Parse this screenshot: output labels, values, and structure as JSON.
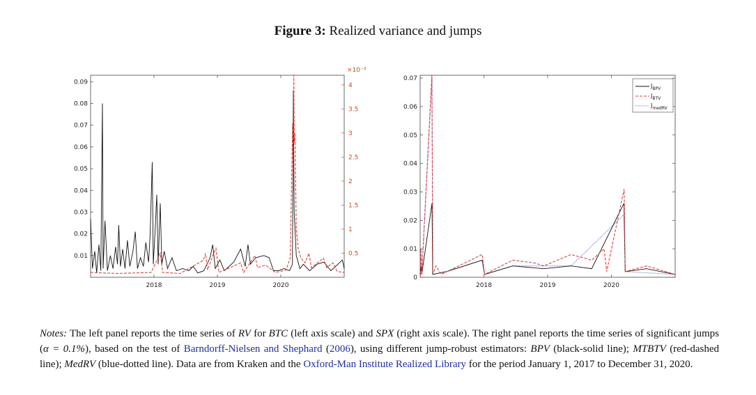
{
  "figure": {
    "label": "Figure 3:",
    "title": "Realized variance and jumps"
  },
  "chart_data": [
    {
      "type": "line",
      "panel": "left",
      "x_ticks": [
        "2018",
        "2019",
        "2020"
      ],
      "xlim": [
        "2017-01-01",
        "2020-12-31"
      ],
      "y_left_ticks": [
        "0.01",
        "0.02",
        "0.03",
        "0.04",
        "0.05",
        "0.06",
        "0.07",
        "0.08",
        "0.09"
      ],
      "ylim_left": [
        0,
        0.093
      ],
      "y_right_ticks": [
        "0.5",
        "1",
        "1.5",
        "2",
        "2.5",
        "3",
        "3.5",
        "4"
      ],
      "ylim_right": [
        0,
        4.2
      ],
      "y_right_exponent": "×10⁻³",
      "series": [
        {
          "color": "#111111",
          "style": "solid",
          "axis": "left",
          "points": [
            [
              "2017-01-01",
              0.027
            ],
            [
              "2017-01-12",
              0.004
            ],
            [
              "2017-01-25",
              0.012
            ],
            [
              "2017-02-05",
              0.002
            ],
            [
              "2017-02-18",
              0.015
            ],
            [
              "2017-03-01",
              0.003
            ],
            [
              "2017-03-10",
              0.08
            ],
            [
              "2017-03-14",
              0.004
            ],
            [
              "2017-03-25",
              0.026
            ],
            [
              "2017-04-08",
              0.003
            ],
            [
              "2017-04-25",
              0.01
            ],
            [
              "2017-05-10",
              0.004
            ],
            [
              "2017-05-25",
              0.014
            ],
            [
              "2017-06-05",
              0.006
            ],
            [
              "2017-06-12",
              0.024
            ],
            [
              "2017-06-22",
              0.005
            ],
            [
              "2017-07-05",
              0.013
            ],
            [
              "2017-07-18",
              0.004
            ],
            [
              "2017-08-01",
              0.017
            ],
            [
              "2017-08-15",
              0.005
            ],
            [
              "2017-09-02",
              0.012
            ],
            [
              "2017-09-15",
              0.021
            ],
            [
              "2017-09-28",
              0.004
            ],
            [
              "2017-10-15",
              0.009
            ],
            [
              "2017-11-01",
              0.005
            ],
            [
              "2017-11-15",
              0.016
            ],
            [
              "2017-12-01",
              0.007
            ],
            [
              "2017-12-10",
              0.02
            ],
            [
              "2017-12-22",
              0.053
            ],
            [
              "2017-12-28",
              0.006
            ],
            [
              "2018-01-08",
              0.022
            ],
            [
              "2018-01-17",
              0.038
            ],
            [
              "2018-01-25",
              0.006
            ],
            [
              "2018-02-06",
              0.034
            ],
            [
              "2018-02-15",
              0.006
            ],
            [
              "2018-03-01",
              0.012
            ],
            [
              "2018-03-20",
              0.004
            ],
            [
              "2018-04-15",
              0.009
            ],
            [
              "2018-05-10",
              0.003
            ],
            [
              "2018-06-15",
              0.004
            ],
            [
              "2018-07-20",
              0.003
            ],
            [
              "2018-08-15",
              0.005
            ],
            [
              "2018-09-10",
              0.002
            ],
            [
              "2018-10-15",
              0.003
            ],
            [
              "2018-11-20",
              0.009
            ],
            [
              "2018-12-05",
              0.015
            ],
            [
              "2018-12-20",
              0.004
            ],
            [
              "2019-01-15",
              0.008
            ],
            [
              "2019-02-10",
              0.003
            ],
            [
              "2019-04-05",
              0.007
            ],
            [
              "2019-05-15",
              0.013
            ],
            [
              "2019-06-10",
              0.005
            ],
            [
              "2019-06-26",
              0.015
            ],
            [
              "2019-07-10",
              0.006
            ],
            [
              "2019-08-10",
              0.009
            ],
            [
              "2019-09-25",
              0.01
            ],
            [
              "2019-10-26",
              0.009
            ],
            [
              "2019-11-20",
              0.003
            ],
            [
              "2019-12-20",
              0.003
            ],
            [
              "2020-01-20",
              0.004
            ],
            [
              "2020-02-20",
              0.003
            ],
            [
              "2020-03-08",
              0.006
            ],
            [
              "2020-03-13",
              0.086
            ],
            [
              "2020-03-18",
              0.03
            ],
            [
              "2020-03-30",
              0.01
            ],
            [
              "2020-04-20",
              0.004
            ],
            [
              "2020-05-10",
              0.006
            ],
            [
              "2020-06-15",
              0.003
            ],
            [
              "2020-07-28",
              0.006
            ],
            [
              "2020-09-05",
              0.007
            ],
            [
              "2020-10-15",
              0.003
            ],
            [
              "2020-11-25",
              0.006
            ],
            [
              "2020-12-20",
              0.008
            ],
            [
              "2020-12-31",
              0.004
            ]
          ]
        },
        {
          "color": "#e0403a",
          "style": "dashed",
          "axis": "right",
          "points": [
            [
              "2017-01-01",
              0.1
            ],
            [
              "2017-06-01",
              0.08
            ],
            [
              "2017-12-15",
              0.1
            ],
            [
              "2018-02-06",
              0.5
            ],
            [
              "2018-02-20",
              0.1
            ],
            [
              "2018-06-01",
              0.08
            ],
            [
              "2018-10-11",
              0.35
            ],
            [
              "2018-10-25",
              0.5
            ],
            [
              "2018-11-05",
              0.15
            ],
            [
              "2018-12-05",
              0.45
            ],
            [
              "2018-12-24",
              0.6
            ],
            [
              "2019-01-10",
              0.1
            ],
            [
              "2019-05-15",
              0.3
            ],
            [
              "2019-06-01",
              0.1
            ],
            [
              "2019-08-05",
              0.45
            ],
            [
              "2019-08-20",
              0.2
            ],
            [
              "2019-10-05",
              0.25
            ],
            [
              "2019-12-01",
              0.1
            ],
            [
              "2020-01-31",
              0.15
            ],
            [
              "2020-02-24",
              0.4
            ],
            [
              "2020-03-09",
              3.2
            ],
            [
              "2020-03-12",
              1.8
            ],
            [
              "2020-03-16",
              4.2
            ],
            [
              "2020-03-19",
              2.8
            ],
            [
              "2020-03-23",
              3.0
            ],
            [
              "2020-03-30",
              1.0
            ],
            [
              "2020-04-10",
              0.6
            ],
            [
              "2020-04-25",
              0.4
            ],
            [
              "2020-05-20",
              0.3
            ],
            [
              "2020-06-11",
              0.5
            ],
            [
              "2020-06-25",
              0.2
            ],
            [
              "2020-09-03",
              0.4
            ],
            [
              "2020-09-20",
              0.2
            ],
            [
              "2020-10-28",
              0.3
            ],
            [
              "2020-11-20",
              0.12
            ],
            [
              "2020-12-31",
              0.1
            ]
          ]
        }
      ]
    },
    {
      "type": "line",
      "panel": "right",
      "x_ticks": [
        "2018",
        "2019",
        "2020"
      ],
      "xlim": [
        "2017-01-01",
        "2020-12-31"
      ],
      "y_ticks": [
        "0",
        "0.01",
        "0.02",
        "0.03",
        "0.04",
        "0.05",
        "0.06",
        "0.07"
      ],
      "ylim": [
        0,
        0.071
      ],
      "legend_position": "top-right",
      "legend": [
        {
          "main": "J",
          "sub": "BPV",
          "color": "#111111",
          "style": "solid"
        },
        {
          "main": "J",
          "sub": "BTV",
          "color": "#e0403a",
          "style": "dashed"
        },
        {
          "main": "J",
          "sub": "medRV",
          "color": "#4060d0",
          "style": "dotted"
        }
      ],
      "series": [
        {
          "color": "#4060d0",
          "style": "dotted",
          "points": [
            [
              "2017-01-01",
              0.0
            ],
            [
              "2017-01-05",
              0.01
            ],
            [
              "2017-01-10",
              0.001
            ],
            [
              "2017-03-10",
              0.07
            ],
            [
              "2017-03-14",
              0.001
            ],
            [
              "2017-06-01",
              0.002
            ],
            [
              "2017-12-22",
              0.006
            ],
            [
              "2018-01-05",
              0.001
            ],
            [
              "2018-06-15",
              0.004
            ],
            [
              "2019-05-15",
              0.004
            ],
            [
              "2020-03-13",
              0.022
            ],
            [
              "2020-03-20",
              0.002
            ],
            [
              "2020-12-31",
              0.001
            ]
          ]
        },
        {
          "color": "#111111",
          "style": "solid",
          "points": [
            [
              "2017-01-01",
              0.0
            ],
            [
              "2017-01-05",
              0.004
            ],
            [
              "2017-01-10",
              0.001
            ],
            [
              "2017-03-10",
              0.026
            ],
            [
              "2017-03-14",
              0.001
            ],
            [
              "2017-06-01",
              0.002
            ],
            [
              "2017-12-22",
              0.006
            ],
            [
              "2018-01-05",
              0.001
            ],
            [
              "2018-06-15",
              0.004
            ],
            [
              "2018-12-10",
              0.003
            ],
            [
              "2019-05-15",
              0.004
            ],
            [
              "2019-09-10",
              0.003
            ],
            [
              "2020-03-13",
              0.026
            ],
            [
              "2020-03-20",
              0.002
            ],
            [
              "2020-07-20",
              0.003
            ],
            [
              "2020-12-31",
              0.001
            ]
          ]
        },
        {
          "color": "#e0403a",
          "style": "dashed",
          "points": [
            [
              "2017-01-01",
              0.0
            ],
            [
              "2017-01-05",
              0.01
            ],
            [
              "2017-01-10",
              0.001
            ],
            [
              "2017-03-09",
              0.071
            ],
            [
              "2017-03-15",
              0.001
            ],
            [
              "2017-04-01",
              0.004
            ],
            [
              "2017-05-01",
              0.001
            ],
            [
              "2017-12-22",
              0.008
            ],
            [
              "2018-01-05",
              0.001
            ],
            [
              "2018-06-15",
              0.006
            ],
            [
              "2018-10-20",
              0.005
            ],
            [
              "2018-12-10",
              0.004
            ],
            [
              "2019-05-15",
              0.008
            ],
            [
              "2019-09-10",
              0.006
            ],
            [
              "2019-11-20",
              0.01
            ],
            [
              "2019-12-05",
              0.002
            ],
            [
              "2020-03-14",
              0.031
            ],
            [
              "2020-03-20",
              0.002
            ],
            [
              "2020-07-20",
              0.004
            ],
            [
              "2020-12-31",
              0.001
            ]
          ]
        }
      ]
    }
  ],
  "notes": {
    "label": "Notes:",
    "t1": " The left panel reports the time series of ",
    "m1": "RV",
    "t2": " for ",
    "m2": "BTC",
    "t3": " (left axis scale) and ",
    "m3": "SPX",
    "t4": " (right axis scale). The right panel reports the time series of significant jumps (",
    "m4": "α = 0.1%",
    "t5": "), based on the test of ",
    "link1": "Barndorff-Nielsen and Shephard",
    "t6": " (",
    "link1_year": "2006",
    "t7": "), using different jump-robust estimators: ",
    "m5": "BPV",
    "t8": " (black-solid line); ",
    "m6": "MTBTV",
    "t9": " (red-dashed line); ",
    "m7": "MedRV",
    "t10": " (blue-dotted line). Data are from Kraken and the ",
    "link2": "Oxford-Man Institute Realized Library",
    "t11": " for the period January 1, 2017 to December 31, 2020."
  }
}
